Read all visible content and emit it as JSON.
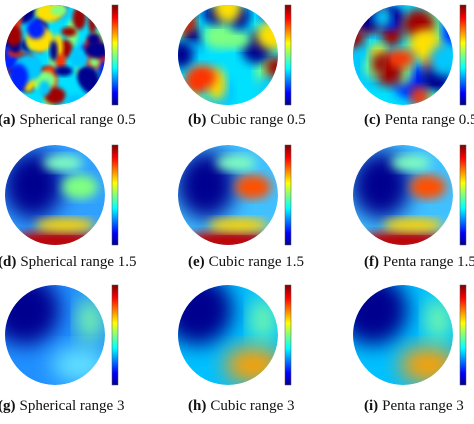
{
  "panels": [
    {
      "label": "(a)",
      "caption": "Spherical range 0.5"
    },
    {
      "label": "(b)",
      "caption": "Cubic range 0.5"
    },
    {
      "label": "(c)",
      "caption": "Penta range 0.5"
    },
    {
      "label": "(d)",
      "caption": "Spherical range 1.5"
    },
    {
      "label": "(e)",
      "caption": "Cubic range 1.5"
    },
    {
      "label": "(f)",
      "caption": "Penta range 1.5"
    },
    {
      "label": "(g)",
      "caption": "Spherical range 3"
    },
    {
      "label": "(h)",
      "caption": "Cubic range 3"
    },
    {
      "label": "(i)",
      "caption": "Penta range 3"
    }
  ]
}
